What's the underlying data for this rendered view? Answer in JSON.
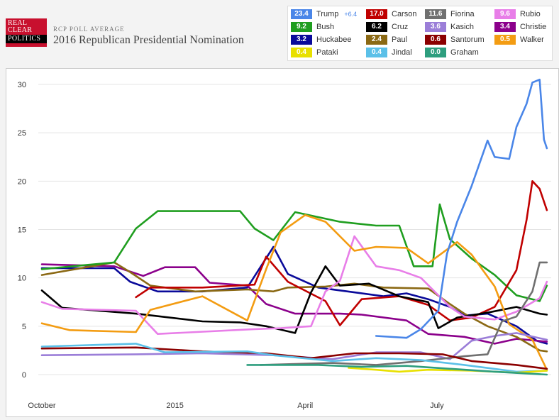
{
  "header": {
    "logo_lines": [
      "REAL",
      "CLEAR",
      "POLITICS"
    ],
    "kicker": "RCP Poll Average",
    "title": "2016 Republican Presidential Nomination"
  },
  "legend": [
    {
      "name": "Trump",
      "value": "23.4",
      "change": "+6.4",
      "color": "#4a86e8"
    },
    {
      "name": "Carson",
      "value": "17.0",
      "color": "#c00000"
    },
    {
      "name": "Fiorina",
      "value": "11.6",
      "color": "#707070"
    },
    {
      "name": "Rubio",
      "value": "9.6",
      "color": "#e87ee8"
    },
    {
      "name": "Bush",
      "value": "9.2",
      "color": "#1f9e1f"
    },
    {
      "name": "Cruz",
      "value": "6.2",
      "color": "#000000"
    },
    {
      "name": "Kasich",
      "value": "3.6",
      "color": "#9b7ed8"
    },
    {
      "name": "Christie",
      "value": "3.4",
      "color": "#8b008b"
    },
    {
      "name": "Huckabee",
      "value": "3.2",
      "color": "#0a0a9a"
    },
    {
      "name": "Paul",
      "value": "2.4",
      "color": "#8b6914"
    },
    {
      "name": "Santorum",
      "value": "0.6",
      "color": "#8b0000"
    },
    {
      "name": "Walker",
      "value": "0.5",
      "color": "#f39c12"
    },
    {
      "name": "Pataki",
      "value": "0.4",
      "color": "#e8e000"
    },
    {
      "name": "Jindal",
      "value": "0.4",
      "color": "#5bc0e8"
    },
    {
      "name": "Graham",
      "value": "0.0",
      "color": "#2e9e7e"
    }
  ],
  "chart_data": {
    "type": "line",
    "title": "2016 Republican Presidential Nomination",
    "xlabel": "",
    "ylabel": "",
    "ylim": [
      0,
      31
    ],
    "xlim": [
      "2014-10-01",
      "2015-09-18"
    ],
    "yticks": [
      0,
      5,
      10,
      15,
      20,
      25,
      30
    ],
    "xticks": [
      {
        "label": "October",
        "date": "2014-10-01"
      },
      {
        "label": "2015",
        "date": "2015-01-01"
      },
      {
        "label": "April",
        "date": "2015-04-01"
      },
      {
        "label": "July",
        "date": "2015-07-01"
      }
    ],
    "grid": "horizontal",
    "series": [
      {
        "name": "Huckabee",
        "color": "#0a0a9a",
        "points": [
          [
            "2014-10-01",
            11.0
          ],
          [
            "2014-11-20",
            11.0
          ],
          [
            "2014-12-01",
            9.6
          ],
          [
            "2014-12-20",
            8.6
          ],
          [
            "2015-01-20",
            8.6
          ],
          [
            "2015-02-20",
            9.0
          ],
          [
            "2015-03-10",
            13.2
          ],
          [
            "2015-03-20",
            10.4
          ],
          [
            "2015-04-10",
            9.0
          ],
          [
            "2015-05-05",
            8.5
          ],
          [
            "2015-05-25",
            8.1
          ],
          [
            "2015-06-10",
            8.4
          ],
          [
            "2015-06-25",
            7.8
          ],
          [
            "2015-07-10",
            7.0
          ],
          [
            "2015-07-20",
            6.1
          ],
          [
            "2015-08-05",
            6.3
          ],
          [
            "2015-08-25",
            5.0
          ],
          [
            "2015-09-08",
            3.5
          ],
          [
            "2015-09-15",
            3.2
          ]
        ]
      },
      {
        "name": "Christie",
        "color": "#8b008b",
        "points": [
          [
            "2014-10-01",
            11.4
          ],
          [
            "2014-11-20",
            11.2
          ],
          [
            "2014-12-10",
            10.2
          ],
          [
            "2014-12-25",
            11.1
          ],
          [
            "2015-01-15",
            11.1
          ],
          [
            "2015-01-25",
            9.5
          ],
          [
            "2015-02-20",
            9.2
          ],
          [
            "2015-03-05",
            7.3
          ],
          [
            "2015-03-25",
            6.3
          ],
          [
            "2015-04-25",
            6.3
          ],
          [
            "2015-05-10",
            6.2
          ],
          [
            "2015-06-10",
            5.6
          ],
          [
            "2015-06-25",
            4.2
          ],
          [
            "2015-07-20",
            3.9
          ],
          [
            "2015-08-10",
            3.2
          ],
          [
            "2015-08-25",
            3.7
          ],
          [
            "2015-09-15",
            3.4
          ]
        ]
      },
      {
        "name": "Paul",
        "color": "#8b6914",
        "points": [
          [
            "2014-10-01",
            10.3
          ],
          [
            "2014-11-20",
            11.6
          ],
          [
            "2014-12-01",
            10.6
          ],
          [
            "2014-12-15",
            9.2
          ],
          [
            "2015-01-15",
            8.6
          ],
          [
            "2015-02-20",
            8.8
          ],
          [
            "2015-03-10",
            8.6
          ],
          [
            "2015-03-20",
            9.0
          ],
          [
            "2015-04-15",
            9.1
          ],
          [
            "2015-05-05",
            9.4
          ],
          [
            "2015-05-25",
            9.0
          ],
          [
            "2015-06-25",
            8.9
          ],
          [
            "2015-07-10",
            7.3
          ],
          [
            "2015-07-20",
            6.3
          ],
          [
            "2015-08-05",
            5.0
          ],
          [
            "2015-08-25",
            3.9
          ],
          [
            "2015-09-10",
            2.5
          ],
          [
            "2015-09-15",
            2.4
          ]
        ]
      },
      {
        "name": "Bush",
        "color": "#1f9e1f",
        "points": [
          [
            "2014-10-01",
            10.9
          ],
          [
            "2014-11-20",
            11.6
          ],
          [
            "2014-12-05",
            15.1
          ],
          [
            "2014-12-20",
            16.9
          ],
          [
            "2015-01-20",
            16.9
          ],
          [
            "2015-02-15",
            16.9
          ],
          [
            "2015-02-25",
            15.1
          ],
          [
            "2015-03-10",
            13.9
          ],
          [
            "2015-03-25",
            16.8
          ],
          [
            "2015-04-25",
            15.8
          ],
          [
            "2015-05-20",
            15.4
          ],
          [
            "2015-06-05",
            15.4
          ],
          [
            "2015-06-15",
            11.2
          ],
          [
            "2015-06-28",
            11.2
          ],
          [
            "2015-07-03",
            17.6
          ],
          [
            "2015-07-10",
            14.0
          ],
          [
            "2015-07-25",
            12.0
          ],
          [
            "2015-08-10",
            10.3
          ],
          [
            "2015-08-25",
            8.2
          ],
          [
            "2015-09-10",
            7.6
          ],
          [
            "2015-09-15",
            9.2
          ]
        ]
      },
      {
        "name": "Carson",
        "color": "#c00000",
        "points": [
          [
            "2014-12-05",
            8.0
          ],
          [
            "2014-12-15",
            9.0
          ],
          [
            "2015-01-20",
            9.0
          ],
          [
            "2015-02-25",
            9.3
          ],
          [
            "2015-03-05",
            12.2
          ],
          [
            "2015-03-20",
            9.6
          ],
          [
            "2015-04-15",
            7.6
          ],
          [
            "2015-04-25",
            5.1
          ],
          [
            "2015-05-10",
            7.8
          ],
          [
            "2015-06-05",
            8.1
          ],
          [
            "2015-06-25",
            7.2
          ],
          [
            "2015-07-10",
            5.6
          ],
          [
            "2015-07-25",
            5.9
          ],
          [
            "2015-08-10",
            7.0
          ],
          [
            "2015-08-25",
            10.8
          ],
          [
            "2015-09-01",
            16.0
          ],
          [
            "2015-09-05",
            20.0
          ],
          [
            "2015-09-10",
            19.2
          ],
          [
            "2015-09-15",
            17.0
          ]
        ]
      },
      {
        "name": "Cruz",
        "color": "#000000",
        "points": [
          [
            "2014-10-01",
            8.7
          ],
          [
            "2014-10-15",
            6.9
          ],
          [
            "2014-12-05",
            6.3
          ],
          [
            "2015-01-20",
            5.5
          ],
          [
            "2015-02-15",
            5.4
          ],
          [
            "2015-03-05",
            5.0
          ],
          [
            "2015-03-25",
            4.3
          ],
          [
            "2015-04-05",
            8.5
          ],
          [
            "2015-04-15",
            11.2
          ],
          [
            "2015-04-25",
            9.2
          ],
          [
            "2015-05-15",
            9.4
          ],
          [
            "2015-06-05",
            8.1
          ],
          [
            "2015-06-25",
            7.5
          ],
          [
            "2015-07-02",
            4.8
          ],
          [
            "2015-07-15",
            5.9
          ],
          [
            "2015-08-05",
            6.4
          ],
          [
            "2015-08-25",
            7.0
          ],
          [
            "2015-09-10",
            6.3
          ],
          [
            "2015-09-15",
            6.2
          ]
        ]
      },
      {
        "name": "Rubio",
        "color": "#e87ee8",
        "points": [
          [
            "2014-10-01",
            7.5
          ],
          [
            "2014-10-15",
            6.8
          ],
          [
            "2014-12-05",
            6.6
          ],
          [
            "2014-12-20",
            4.2
          ],
          [
            "2015-02-25",
            4.7
          ],
          [
            "2015-03-15",
            4.8
          ],
          [
            "2015-04-05",
            5.0
          ],
          [
            "2015-04-15",
            8.6
          ],
          [
            "2015-04-25",
            9.7
          ],
          [
            "2015-05-05",
            14.3
          ],
          [
            "2015-05-20",
            11.2
          ],
          [
            "2015-06-05",
            10.8
          ],
          [
            "2015-06-20",
            10.0
          ],
          [
            "2015-07-10",
            7.0
          ],
          [
            "2015-07-20",
            6.0
          ],
          [
            "2015-08-10",
            5.7
          ],
          [
            "2015-08-25",
            6.5
          ],
          [
            "2015-09-10",
            7.9
          ],
          [
            "2015-09-15",
            9.6
          ]
        ]
      },
      {
        "name": "Walker",
        "color": "#f39c12",
        "points": [
          [
            "2014-10-01",
            5.3
          ],
          [
            "2014-10-20",
            4.6
          ],
          [
            "2014-12-05",
            4.4
          ],
          [
            "2014-12-15",
            6.7
          ],
          [
            "2015-01-20",
            8.1
          ],
          [
            "2015-02-20",
            5.6
          ],
          [
            "2015-03-05",
            10.9
          ],
          [
            "2015-03-15",
            14.7
          ],
          [
            "2015-04-01",
            16.5
          ],
          [
            "2015-04-15",
            15.8
          ],
          [
            "2015-05-05",
            12.8
          ],
          [
            "2015-05-20",
            13.2
          ],
          [
            "2015-06-10",
            13.1
          ],
          [
            "2015-06-25",
            11.5
          ],
          [
            "2015-07-15",
            13.7
          ],
          [
            "2015-07-25",
            12.4
          ],
          [
            "2015-08-10",
            9.1
          ],
          [
            "2015-08-20",
            5.2
          ],
          [
            "2015-09-05",
            3.6
          ],
          [
            "2015-09-15",
            0.5
          ]
        ]
      },
      {
        "name": "Kasich",
        "color": "#9b7ed8",
        "points": [
          [
            "2014-10-01",
            2.0
          ],
          [
            "2014-12-05",
            2.1
          ],
          [
            "2015-01-20",
            2.2
          ],
          [
            "2015-03-10",
            2.0
          ],
          [
            "2015-04-20",
            1.6
          ],
          [
            "2015-05-20",
            2.3
          ],
          [
            "2015-06-20",
            2.3
          ],
          [
            "2015-07-10",
            1.6
          ],
          [
            "2015-07-25",
            3.5
          ],
          [
            "2015-08-10",
            4.0
          ],
          [
            "2015-08-25",
            4.3
          ],
          [
            "2015-09-15",
            3.6
          ]
        ]
      },
      {
        "name": "Fiorina",
        "color": "#707070",
        "points": [
          [
            "2015-03-01",
            1.0
          ],
          [
            "2015-04-20",
            1.2
          ],
          [
            "2015-05-20",
            1.0
          ],
          [
            "2015-06-20",
            1.4
          ],
          [
            "2015-07-20",
            1.9
          ],
          [
            "2015-08-05",
            2.1
          ],
          [
            "2015-08-15",
            5.5
          ],
          [
            "2015-08-25",
            6.0
          ],
          [
            "2015-09-05",
            8.6
          ],
          [
            "2015-09-10",
            11.6
          ],
          [
            "2015-09-15",
            11.6
          ]
        ]
      },
      {
        "name": "Santorum",
        "color": "#8b0000",
        "points": [
          [
            "2014-10-01",
            2.7
          ],
          [
            "2014-12-05",
            2.8
          ],
          [
            "2015-01-20",
            2.4
          ],
          [
            "2015-03-05",
            2.2
          ],
          [
            "2015-04-05",
            1.7
          ],
          [
            "2015-05-05",
            2.2
          ],
          [
            "2015-06-05",
            2.2
          ],
          [
            "2015-07-05",
            2.1
          ],
          [
            "2015-07-25",
            1.4
          ],
          [
            "2015-08-25",
            1.0
          ],
          [
            "2015-09-15",
            0.6
          ]
        ]
      },
      {
        "name": "Jindal",
        "color": "#5bc0e8",
        "points": [
          [
            "2014-10-01",
            2.9
          ],
          [
            "2014-12-05",
            3.2
          ],
          [
            "2014-12-25",
            2.3
          ],
          [
            "2015-02-20",
            2.4
          ],
          [
            "2015-03-10",
            2.0
          ],
          [
            "2015-04-20",
            1.4
          ],
          [
            "2015-05-20",
            1.7
          ],
          [
            "2015-06-20",
            1.5
          ],
          [
            "2015-07-20",
            1.0
          ],
          [
            "2015-08-25",
            0.3
          ],
          [
            "2015-09-15",
            0.4
          ]
        ]
      },
      {
        "name": "Pataki",
        "color": "#e8e000",
        "points": [
          [
            "2015-05-01",
            0.7
          ],
          [
            "2015-05-20",
            0.5
          ],
          [
            "2015-06-05",
            0.3
          ],
          [
            "2015-06-25",
            0.5
          ],
          [
            "2015-07-25",
            0.4
          ],
          [
            "2015-08-25",
            0.2
          ],
          [
            "2015-09-15",
            0.4
          ]
        ]
      },
      {
        "name": "Graham",
        "color": "#2e9e7e",
        "points": [
          [
            "2015-02-20",
            1.0
          ],
          [
            "2015-04-10",
            1.0
          ],
          [
            "2015-05-10",
            0.8
          ],
          [
            "2015-06-10",
            0.9
          ],
          [
            "2015-07-10",
            0.6
          ],
          [
            "2015-08-10",
            0.3
          ],
          [
            "2015-09-15",
            0.0
          ]
        ]
      },
      {
        "name": "Trump",
        "color": "#4a86e8",
        "points": [
          [
            "2015-05-20",
            4.0
          ],
          [
            "2015-06-10",
            3.8
          ],
          [
            "2015-06-20",
            4.7
          ],
          [
            "2015-07-02",
            6.6
          ],
          [
            "2015-07-08",
            12.5
          ],
          [
            "2015-07-15",
            15.8
          ],
          [
            "2015-07-25",
            19.5
          ],
          [
            "2015-08-05",
            24.2
          ],
          [
            "2015-08-10",
            22.5
          ],
          [
            "2015-08-20",
            22.3
          ],
          [
            "2015-08-25",
            25.6
          ],
          [
            "2015-09-01",
            28.0
          ],
          [
            "2015-09-05",
            30.2
          ],
          [
            "2015-09-10",
            30.5
          ],
          [
            "2015-09-13",
            24.3
          ],
          [
            "2015-09-15",
            23.4
          ]
        ]
      }
    ]
  }
}
